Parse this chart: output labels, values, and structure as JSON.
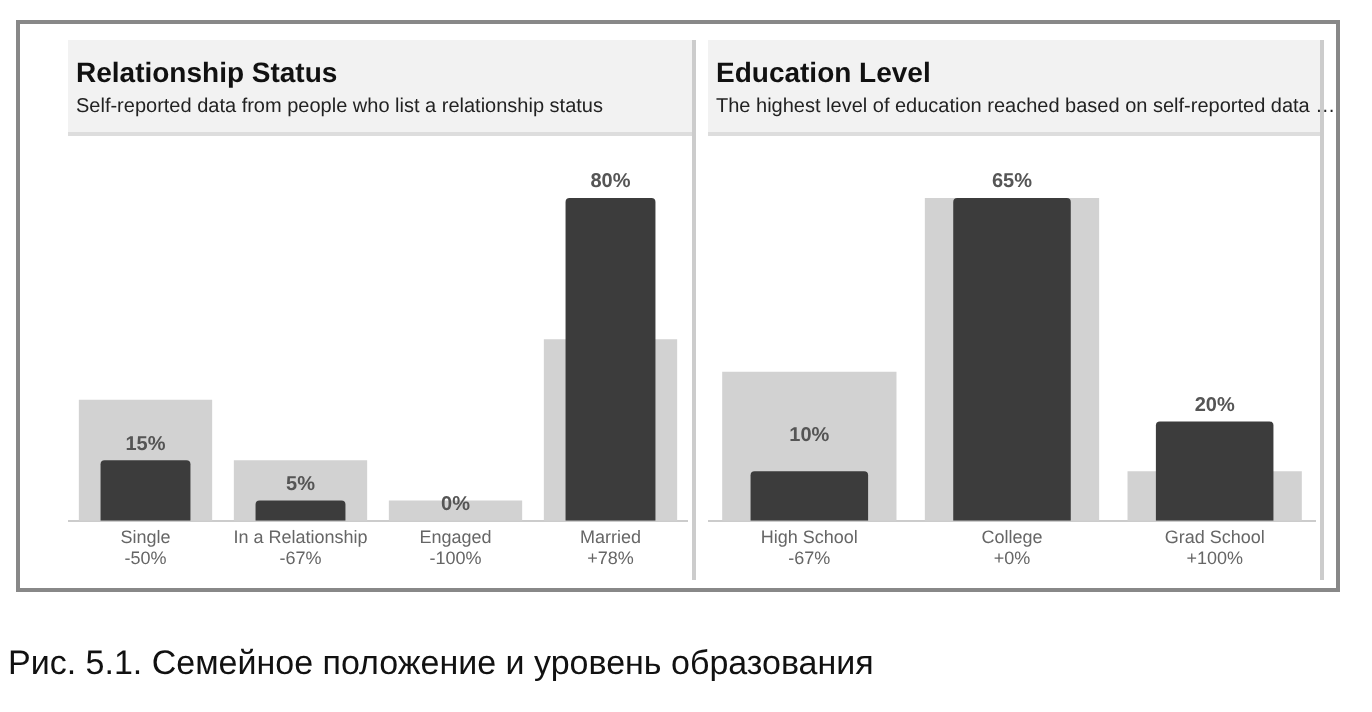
{
  "chart_data": [
    {
      "type": "bar",
      "title": "Relationship Status",
      "subtitle": "Self-reported data from people who list a relationship status",
      "categories": [
        "Single\n-50%",
        "In a Relationship\n-67%",
        "Engaged\n-100%",
        "Married\n+78%"
      ],
      "series": [
        {
          "color": "#d2d2d2",
          "values": [
            30,
            15,
            5,
            45
          ]
        },
        {
          "color": "#3c3c3c",
          "values": [
            15,
            5,
            0,
            80
          ],
          "value_labels": [
            "15%",
            "5%",
            "0%",
            "80%"
          ]
        }
      ],
      "legend": false,
      "grid": false,
      "tick_labels": "x",
      "annotations": [
        "Рис. 5.1. Семейное положение и уровень образования"
      ]
    },
    {
      "type": "bar",
      "title": "Education Level",
      "subtitle": "The highest level of education reached based on self-reported data …",
      "categories": [
        "High School\n-67%",
        "College\n+0%",
        "Grad School\n+100%"
      ],
      "series": [
        {
          "color": "#d2d2d2",
          "values": [
            30,
            65,
            10
          ]
        },
        {
          "color": "#3c3c3c",
          "values": [
            10,
            65,
            20
          ],
          "value_labels": [
            "10%",
            "65%",
            "20%"
          ]
        }
      ],
      "legend": false,
      "grid": false,
      "tick_labels": "x"
    }
  ]
}
